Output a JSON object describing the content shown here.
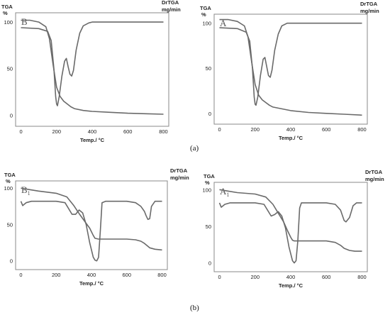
{
  "captions": {
    "top": "(a)",
    "bottom": "(b)"
  },
  "chart_data": [
    {
      "type": "line",
      "panel_letter": "B",
      "panel_subscript": "",
      "ylabel_left": [
        "TGA",
        "%"
      ],
      "ylabel_right": [
        "DrTGA",
        "mg/min"
      ],
      "xlabel": "Temp./ °C",
      "xlim": [
        -30,
        830
      ],
      "ylim": [
        -12,
        110
      ],
      "xticks": [
        0,
        200,
        400,
        600,
        800
      ],
      "yticks": [
        0,
        50,
        100
      ],
      "series": [
        {
          "x": [
            0,
            50,
            100,
            140,
            160,
            180,
            200,
            220,
            240,
            260,
            280,
            300,
            350,
            400,
            500,
            600,
            700,
            800
          ],
          "y": [
            102,
            102,
            100,
            95,
            82,
            55,
            30,
            20,
            15,
            12,
            9,
            7,
            5,
            4,
            3,
            2,
            1.5,
            1
          ]
        },
        {
          "x": [
            0,
            100,
            150,
            170,
            185,
            195,
            200,
            205,
            215,
            230,
            245,
            255,
            265,
            275,
            285,
            295,
            310,
            330,
            350,
            380,
            400,
            500,
            600,
            700,
            800
          ],
          "y": [
            94,
            93,
            90,
            80,
            50,
            20,
            12,
            10,
            20,
            42,
            58,
            61,
            52,
            44,
            42,
            48,
            70,
            88,
            96,
            99,
            100,
            100,
            100,
            100,
            100
          ]
        }
      ]
    },
    {
      "type": "line",
      "panel_letter": "A",
      "panel_subscript": "",
      "ylabel_left": [
        "TGA",
        "%"
      ],
      "ylabel_right": [
        "DrTGA",
        "mg/min"
      ],
      "xlabel": "Temp./ °C",
      "xlim": [
        -30,
        830
      ],
      "ylim": [
        -12,
        110
      ],
      "xticks": [
        0,
        200,
        400,
        600,
        800
      ],
      "yticks": [
        0,
        50,
        100
      ],
      "series": [
        {
          "x": [
            0,
            50,
            100,
            140,
            160,
            180,
            200,
            220,
            240,
            260,
            280,
            300,
            350,
            400,
            500,
            600,
            700,
            800
          ],
          "y": [
            104,
            104,
            102,
            97,
            85,
            58,
            32,
            20,
            15,
            12,
            9,
            7,
            5,
            3,
            1,
            0,
            -1,
            -2
          ]
        },
        {
          "x": [
            0,
            100,
            150,
            170,
            185,
            195,
            200,
            205,
            215,
            230,
            245,
            255,
            265,
            275,
            285,
            295,
            310,
            330,
            350,
            380,
            400,
            500,
            600,
            700,
            800
          ],
          "y": [
            95,
            94,
            90,
            80,
            50,
            18,
            10,
            9,
            18,
            42,
            60,
            62,
            52,
            42,
            40,
            48,
            70,
            88,
            97,
            100,
            100,
            100,
            100,
            100,
            100
          ]
        }
      ]
    },
    {
      "type": "line",
      "panel_letter": "B",
      "panel_subscript": "1",
      "ylabel_left": [
        "TGA",
        "%"
      ],
      "ylabel_right": [
        "DrTGA",
        "mg/min"
      ],
      "xlabel": "Temp./ °C",
      "xlim": [
        -30,
        830
      ],
      "ylim": [
        -12,
        110
      ],
      "xticks": [
        0,
        200,
        400,
        600,
        800
      ],
      "yticks": [
        0,
        50,
        100
      ],
      "series": [
        {
          "x": [
            0,
            50,
            100,
            200,
            260,
            300,
            330,
            360,
            390,
            410,
            420,
            440,
            500,
            600,
            650,
            680,
            700,
            730,
            760,
            800
          ],
          "y": [
            100,
            98,
            96,
            93,
            88,
            76,
            65,
            55,
            45,
            35,
            31,
            30,
            30,
            30,
            29,
            27,
            24,
            18,
            16,
            15
          ]
        },
        {
          "x": [
            0,
            10,
            30,
            60,
            100,
            200,
            250,
            270,
            290,
            310,
            330,
            350,
            370,
            390,
            410,
            420,
            430,
            440,
            450,
            460,
            480,
            500,
            550,
            600,
            650,
            680,
            700,
            710,
            720,
            730,
            740,
            760,
            800
          ],
          "y": [
            82,
            76,
            80,
            82,
            82,
            82,
            80,
            72,
            64,
            64,
            70,
            66,
            50,
            25,
            5,
            1,
            0,
            5,
            40,
            80,
            82,
            82,
            82,
            82,
            80,
            75,
            68,
            62,
            57,
            58,
            75,
            82,
            82
          ]
        }
      ]
    },
    {
      "type": "line",
      "panel_letter": "A",
      "panel_subscript": "1",
      "ylabel_left": [
        "TGA",
        "%"
      ],
      "ylabel_right": [
        "DrTGA",
        "mg/min"
      ],
      "xlabel": "Temp./ °C",
      "xlim": [
        -30,
        830
      ],
      "ylim": [
        -12,
        110
      ],
      "xticks": [
        0,
        200,
        400,
        600,
        800
      ],
      "yticks": [
        0,
        50,
        100
      ],
      "series": [
        {
          "x": [
            0,
            50,
            100,
            200,
            260,
            300,
            330,
            360,
            380,
            400,
            410,
            420,
            440,
            500,
            600,
            650,
            680,
            700,
            730,
            760,
            800
          ],
          "y": [
            100,
            98,
            96,
            94,
            90,
            80,
            68,
            56,
            45,
            35,
            31,
            30,
            30,
            30,
            30,
            28,
            24,
            20,
            17,
            16,
            16
          ]
        },
        {
          "x": [
            0,
            10,
            30,
            60,
            100,
            200,
            250,
            270,
            290,
            310,
            330,
            350,
            370,
            390,
            410,
            420,
            430,
            440,
            450,
            460,
            480,
            500,
            550,
            600,
            650,
            680,
            690,
            700,
            710,
            730,
            750,
            770,
            800
          ],
          "y": [
            82,
            76,
            80,
            82,
            82,
            82,
            80,
            72,
            64,
            66,
            70,
            64,
            48,
            22,
            3,
            0,
            3,
            30,
            75,
            82,
            82,
            82,
            82,
            82,
            80,
            72,
            65,
            58,
            56,
            62,
            78,
            82,
            82
          ]
        }
      ]
    }
  ]
}
